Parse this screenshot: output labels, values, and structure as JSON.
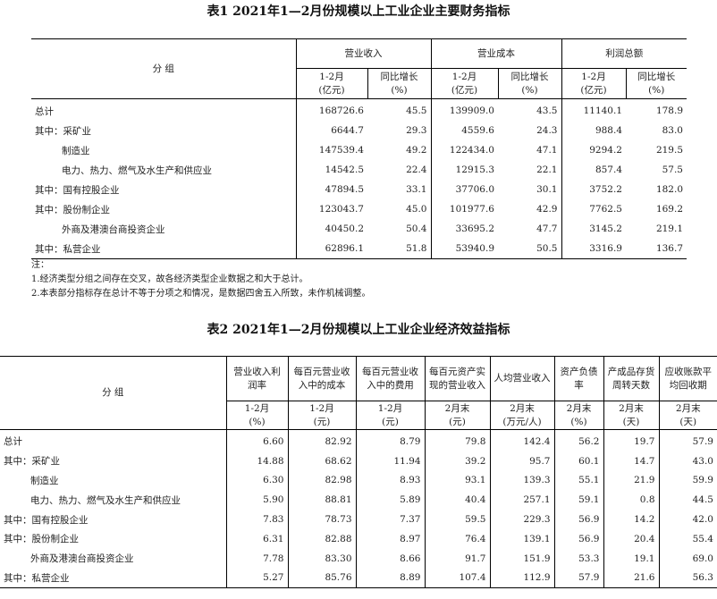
{
  "table1": {
    "title": "表1  2021年1—2月份规模以上工业企业主要财务指标",
    "group_header": "分  组",
    "groups": [
      "营业收入",
      "营业成本",
      "利润总额"
    ],
    "sub": [
      [
        "1-2月",
        "(亿元)"
      ],
      [
        "同比增长",
        "(%)"
      ],
      [
        "1-2月",
        "(亿元)"
      ],
      [
        "同比增长",
        "(%)"
      ],
      [
        "1-2月",
        "(亿元)"
      ],
      [
        "同比增长",
        "(%)"
      ]
    ],
    "rows": [
      {
        "label": "总计",
        "indent": false,
        "v": [
          "168726.6",
          "45.5",
          "139909.0",
          "43.5",
          "11140.1",
          "178.9"
        ]
      },
      {
        "label": "其中：采矿业",
        "indent": false,
        "v": [
          "6644.7",
          "29.3",
          "4559.6",
          "24.3",
          "988.4",
          "83.0"
        ]
      },
      {
        "label": "制造业",
        "indent": true,
        "v": [
          "147539.4",
          "49.2",
          "122434.0",
          "47.1",
          "9294.2",
          "219.5"
        ]
      },
      {
        "label": "电力、热力、燃气及水生产和供应业",
        "indent": true,
        "v": [
          "14542.5",
          "22.4",
          "12915.3",
          "22.1",
          "857.4",
          "57.5"
        ]
      },
      {
        "label": "其中：国有控股企业",
        "indent": false,
        "v": [
          "47894.5",
          "33.1",
          "37706.0",
          "30.1",
          "3752.2",
          "182.0"
        ]
      },
      {
        "label": "其中：股份制企业",
        "indent": false,
        "v": [
          "123043.7",
          "45.0",
          "101977.6",
          "42.9",
          "7762.5",
          "169.2"
        ]
      },
      {
        "label": "外商及港澳台商投资企业",
        "indent": true,
        "v": [
          "40450.2",
          "50.4",
          "33695.2",
          "47.7",
          "3145.2",
          "219.1"
        ]
      },
      {
        "label": "其中：私营企业",
        "indent": false,
        "v": [
          "62896.1",
          "51.8",
          "53940.9",
          "50.5",
          "3316.9",
          "136.7"
        ]
      }
    ],
    "notes": [
      "注：",
      "1.经济类型分组之间存在交叉，故各经济类型企业数据之和大于总计。",
      "2.本表部分指标存在总计不等于分项之和情况，是数据四舍五入所致，未作机械调整。"
    ]
  },
  "table2": {
    "title": "表2  2021年1—2月份规模以上工业企业经济效益指标",
    "group_header": "分  组",
    "cols": [
      "营业收入利润率",
      "每百元营业收入中的成本",
      "每百元营业收入中的费用",
      "每百元资产实现的营业收入",
      "人均营业收入",
      "资产负债率",
      "产成品存货周转天数",
      "应收账款平均回收期"
    ],
    "sub": [
      [
        "1-2月",
        "(%)"
      ],
      [
        "1-2月",
        "(元)"
      ],
      [
        "1-2月",
        "(元)"
      ],
      [
        "2月末",
        "(元)"
      ],
      [
        "2月末",
        "(万元/人)"
      ],
      [
        "2月末",
        "(%)"
      ],
      [
        "2月末",
        "(天)"
      ],
      [
        "2月末",
        "(天)"
      ]
    ],
    "rows": [
      {
        "label": "总计",
        "indent": false,
        "v": [
          "6.60",
          "82.92",
          "8.79",
          "79.8",
          "142.4",
          "56.2",
          "19.7",
          "57.9"
        ]
      },
      {
        "label": "其中：采矿业",
        "indent": false,
        "v": [
          "14.88",
          "68.62",
          "11.94",
          "39.2",
          "95.7",
          "60.1",
          "14.7",
          "43.0"
        ]
      },
      {
        "label": "制造业",
        "indent": true,
        "v": [
          "6.30",
          "82.98",
          "8.93",
          "93.1",
          "139.3",
          "55.1",
          "21.9",
          "59.9"
        ]
      },
      {
        "label": "电力、热力、燃气及水生产和供应业",
        "indent": true,
        "v": [
          "5.90",
          "88.81",
          "5.89",
          "40.4",
          "257.1",
          "59.1",
          "0.8",
          "44.5"
        ]
      },
      {
        "label": "其中：国有控股企业",
        "indent": false,
        "v": [
          "7.83",
          "78.73",
          "7.37",
          "59.5",
          "229.3",
          "56.9",
          "14.2",
          "42.0"
        ]
      },
      {
        "label": "其中：股份制企业",
        "indent": false,
        "v": [
          "6.31",
          "82.88",
          "8.97",
          "76.4",
          "139.1",
          "56.9",
          "20.4",
          "55.4"
        ]
      },
      {
        "label": "外商及港澳台商投资企业",
        "indent": true,
        "v": [
          "7.78",
          "83.30",
          "8.66",
          "91.7",
          "151.9",
          "53.3",
          "19.1",
          "69.0"
        ]
      },
      {
        "label": "其中：私营企业",
        "indent": false,
        "v": [
          "5.27",
          "85.76",
          "8.89",
          "107.4",
          "112.9",
          "57.9",
          "21.6",
          "56.3"
        ]
      }
    ]
  }
}
